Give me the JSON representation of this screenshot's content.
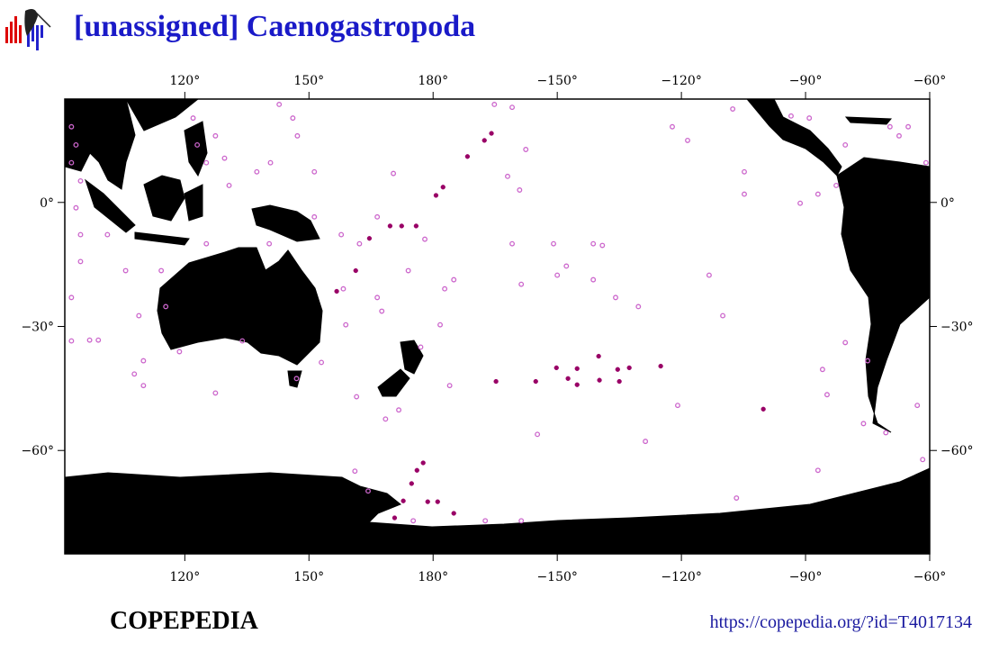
{
  "map": {
    "type": "map",
    "title": "[unassigned] Caenogastropoda",
    "lonlim": [
      91,
      -60
    ],
    "latlim": [
      -85,
      25
    ],
    "lonticks": [
      {
        "value": 120,
        "label": "120°"
      },
      {
        "value": 150,
        "label": "150°"
      },
      {
        "value": 180,
        "label": "180°"
      },
      {
        "value": -150,
        "label": "−150°"
      },
      {
        "value": -120,
        "label": "−120°"
      },
      {
        "value": -90,
        "label": "−90°"
      },
      {
        "value": -60,
        "label": "−60°"
      }
    ],
    "latticks": [
      {
        "value": 0,
        "label": "0°"
      },
      {
        "value": -30,
        "label": "−30°"
      },
      {
        "value": -60,
        "label": "−60°"
      }
    ],
    "series": [
      {
        "color": "#cc66cc",
        "marker": "open",
        "lon": [
          92.6,
          93.7,
          92.6,
          94.8,
          93.7,
          94.8,
          94.8,
          92.6,
          92.6,
          97,
          99.1,
          107.8,
          110,
          110,
          108.9,
          105.7,
          101.3,
          122,
          123,
          125.2,
          127.4,
          129.6,
          130.7,
          142.8,
          146.1,
          147.2,
          140.7,
          137.4,
          151.3,
          157.8,
          162.2,
          166.5,
          170.4,
          178,
          174,
          158.9,
          158.3,
          153,
          147,
          127.4,
          133.9,
          118.7,
          115.4,
          114.3,
          125.2,
          140.4,
          151.3,
          166.5,
          167.6,
          161.5,
          168.5,
          171.7,
          177,
          -178.3,
          -176,
          -175,
          -177.2,
          -165.2,
          -160.9,
          -157.6,
          -162,
          -159.1,
          -160.9,
          -158.7,
          -150,
          -147.8,
          -141.3,
          -139.1,
          -150.9,
          -141.3,
          -135.9,
          -130.4,
          -122.2,
          -118.5,
          -113.3,
          -110,
          -120.9,
          -128.7,
          -154.8,
          -104.8,
          -104.8,
          -87,
          -91.3,
          -82.6,
          -80.4,
          -69.6,
          -65.2,
          -89.1,
          -93.5,
          -107.6,
          -80.4,
          -85.9,
          -84.8,
          -75,
          -76,
          -70.6,
          -63,
          -61.7,
          -87,
          -106.7,
          -158.7,
          -167.4,
          175.2,
          161.1,
          164.3,
          -67.4,
          -60.9
        ],
        "lat": [
          18.3,
          13.9,
          9.6,
          5.2,
          -1.3,
          -7.8,
          -14.3,
          -23,
          -33.5,
          -33.3,
          -33.3,
          -41.5,
          -44.3,
          -38.3,
          -27.4,
          -16.5,
          -7.8,
          20.4,
          13.9,
          9.6,
          16.1,
          10.7,
          4.1,
          23.7,
          20.4,
          16.1,
          9.6,
          7.4,
          7.4,
          -7.8,
          -10,
          -3.5,
          7,
          -8.9,
          -16.5,
          -29.6,
          -20.9,
          -38.7,
          -42.6,
          -46.1,
          -33.5,
          -36.1,
          -25.2,
          -16.5,
          -10,
          -10,
          -3.5,
          -23,
          -26.3,
          -47,
          -52.4,
          -50.2,
          -35,
          -29.6,
          -44.3,
          -18.7,
          -20.9,
          23.7,
          23,
          12.8,
          6.3,
          3,
          -10,
          -19.8,
          -17.6,
          -15.4,
          -10,
          -10.4,
          -10,
          -18.7,
          -23,
          -25.2,
          18.3,
          15,
          -17.6,
          -27.4,
          -49.1,
          -57.8,
          -56.1,
          7.4,
          2,
          2,
          -0.2,
          4.1,
          13.9,
          18.3,
          18.3,
          20.4,
          20.9,
          22.6,
          -33.9,
          -40.4,
          -46.5,
          -38.3,
          -53.5,
          -55.7,
          -49.1,
          -62.2,
          -64.8,
          -71.5,
          -77,
          -77,
          -77,
          -65,
          -69.8,
          16.1,
          9.6
        ]
      },
      {
        "color": "#990066",
        "marker": "filled",
        "lon": [
          -165.9,
          -167.6,
          -171.7,
          -177.6,
          -179.3,
          175.9,
          172.4,
          169.6,
          164.6,
          161.3,
          156.7,
          -155.2,
          -164.8,
          -150.2,
          -147.4,
          -145.2,
          -145.2,
          -140,
          -139.8,
          -135.4,
          -135,
          -132.6,
          -125,
          -100.2,
          177.6,
          176.1,
          174.8,
          178.7,
          -178.9,
          -175,
          170.7,
          172.8
        ],
        "lat": [
          16.7,
          15,
          11.1,
          3.7,
          1.7,
          -5.7,
          -5.7,
          -5.7,
          -8.7,
          -16.5,
          -21.5,
          -43.3,
          -43.3,
          -40,
          -42.6,
          -40.2,
          -44.1,
          -37.2,
          -43,
          -40.4,
          -43.3,
          -40,
          -39.6,
          -50,
          -63,
          -64.8,
          -68,
          -72.4,
          -72.4,
          -75.2,
          -76.3,
          -72.2
        ]
      }
    ],
    "footer_left": "COPEPEDIA",
    "footer_right": "https://copepedia.org/?id=T4017134"
  }
}
